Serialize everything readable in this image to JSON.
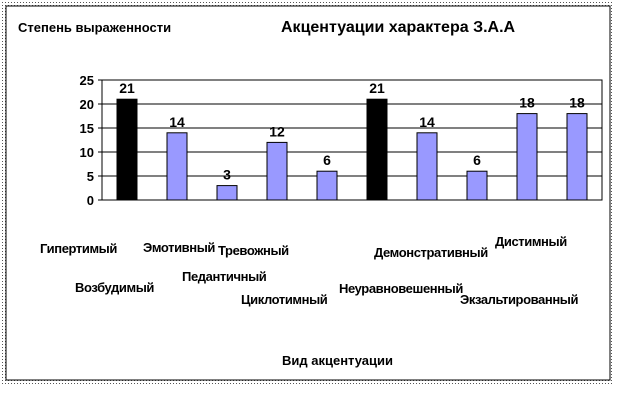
{
  "chart_data": {
    "type": "bar",
    "title": "Акцентуации характера З.А.А",
    "ylabel": "Степень выраженности",
    "xlabel": "Вид акцентуации",
    "categories": [
      "Гипертимый",
      "Возбудимый",
      "Эмотивный",
      "Педантичный",
      "Тревожный",
      "Циклотимный",
      "Демонстративный",
      "Неуравновешенный",
      "Дистимный",
      "Экзальтированный"
    ],
    "values": [
      21,
      14,
      3,
      12,
      6,
      21,
      14,
      6,
      18,
      18
    ],
    "ylim": [
      0,
      25
    ],
    "yticks": [
      "0",
      "5",
      "10",
      "15",
      "20",
      "25"
    ],
    "grid": true,
    "legend": "none",
    "colors": {
      "highlight": "#000000",
      "default": "#9999ff",
      "axis": "#000000",
      "background": "#ffffff"
    },
    "highlighted_indices": [
      0,
      5
    ]
  }
}
